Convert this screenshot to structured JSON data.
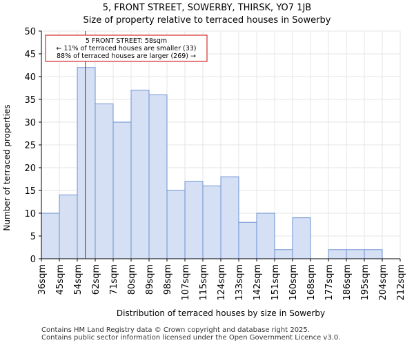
{
  "chart_data": {
    "type": "bar",
    "title_line1": "5, FRONT STREET, SOWERBY, THIRSK, YO7 1JB",
    "title_line2": "Size of property relative to terraced houses in Sowerby",
    "xlabel": "Distribution of terraced houses by size in Sowerby",
    "ylabel": "Number of terraced properties",
    "ylim": [
      0,
      50
    ],
    "yticks": [
      0,
      5,
      10,
      15,
      20,
      25,
      30,
      35,
      40,
      45,
      50
    ],
    "bin_edges": [
      "36sqm",
      "45sqm",
      "54sqm",
      "62sqm",
      "71sqm",
      "80sqm",
      "89sqm",
      "98sqm",
      "107sqm",
      "115sqm",
      "124sqm",
      "133sqm",
      "142sqm",
      "151sqm",
      "160sqm",
      "168sqm",
      "177sqm",
      "186sqm",
      "195sqm",
      "204sqm",
      "212sqm"
    ],
    "values": [
      10,
      14,
      42,
      34,
      30,
      37,
      36,
      15,
      17,
      16,
      18,
      8,
      10,
      2,
      9,
      0,
      2,
      2,
      2,
      0
    ],
    "marker": {
      "value_bin_position": 2.45,
      "line1": "5 FRONT STREET: 58sqm",
      "line2": "← 11% of terraced houses are smaller (33)",
      "line3": "88% of terraced houses are larger (269) →"
    },
    "bar_fill": "#d6e0f5",
    "bar_stroke": "#6b8fd0",
    "marker_color": "#cc0000"
  },
  "footer": {
    "line1": "Contains HM Land Registry data © Crown copyright and database right 2025.",
    "line2": "Contains public sector information licensed under the Open Government Licence v3.0."
  }
}
